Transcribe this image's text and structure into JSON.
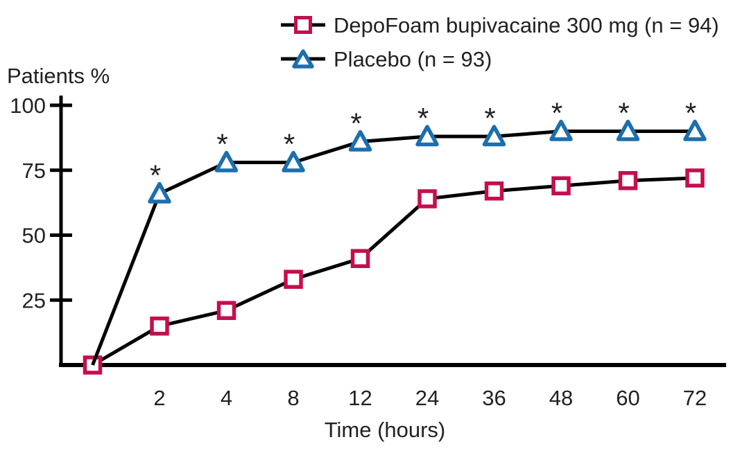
{
  "figure": {
    "y_axis_title": "Patients %",
    "x_axis_title": "Time (hours)"
  },
  "legend": {
    "position": "top-center",
    "items": [
      {
        "label": "DepoFoam bupivacaine 300 mg (n = 94)",
        "marker": "square",
        "color": "#c50e4e"
      },
      {
        "label": "Placebo (n = 93)",
        "marker": "triangle",
        "color": "#1c6fad"
      }
    ]
  },
  "colors": {
    "line": "#000000",
    "text": "#231f20",
    "depofoam_marker": "#c50e4e",
    "placebo_marker": "#1c6fad",
    "background": "#ffffff"
  },
  "chart_data": {
    "type": "line",
    "title": "",
    "xlabel": "Time (hours)",
    "ylabel": "Patients %",
    "x": [
      0,
      2,
      4,
      8,
      12,
      24,
      36,
      48,
      60,
      72
    ],
    "x_tick_labels": [
      "",
      "2",
      "4",
      "8",
      "12",
      "24",
      "36",
      "48",
      "60",
      "72"
    ],
    "x_axis_scale": "categorical-equal-spacing",
    "yticks": [
      25,
      50,
      75,
      100
    ],
    "ytick_labels": [
      "25",
      "50",
      "75",
      "100"
    ],
    "ylim": [
      0,
      100
    ],
    "grid": false,
    "legend_position": "top",
    "significance_symbol": "*",
    "series": [
      {
        "name": "DepoFoam bupivacaine 300 mg (n = 94)",
        "marker": "square",
        "marker_color": "#c50e4e",
        "line_color": "#000000",
        "show_marker_at_first_point": true,
        "asterisk_x_indices": [],
        "values": [
          0,
          15,
          21,
          33,
          41,
          64,
          67,
          69,
          71,
          72
        ]
      },
      {
        "name": "Placebo (n = 93)",
        "marker": "triangle",
        "marker_color": "#1c6fad",
        "line_color": "#000000",
        "show_marker_at_first_point": false,
        "asterisk_x_indices": [
          1,
          2,
          3,
          4,
          5,
          6,
          7,
          8,
          9
        ],
        "values": [
          0,
          66,
          78,
          78,
          86,
          88,
          88,
          90,
          90,
          90
        ]
      }
    ]
  }
}
